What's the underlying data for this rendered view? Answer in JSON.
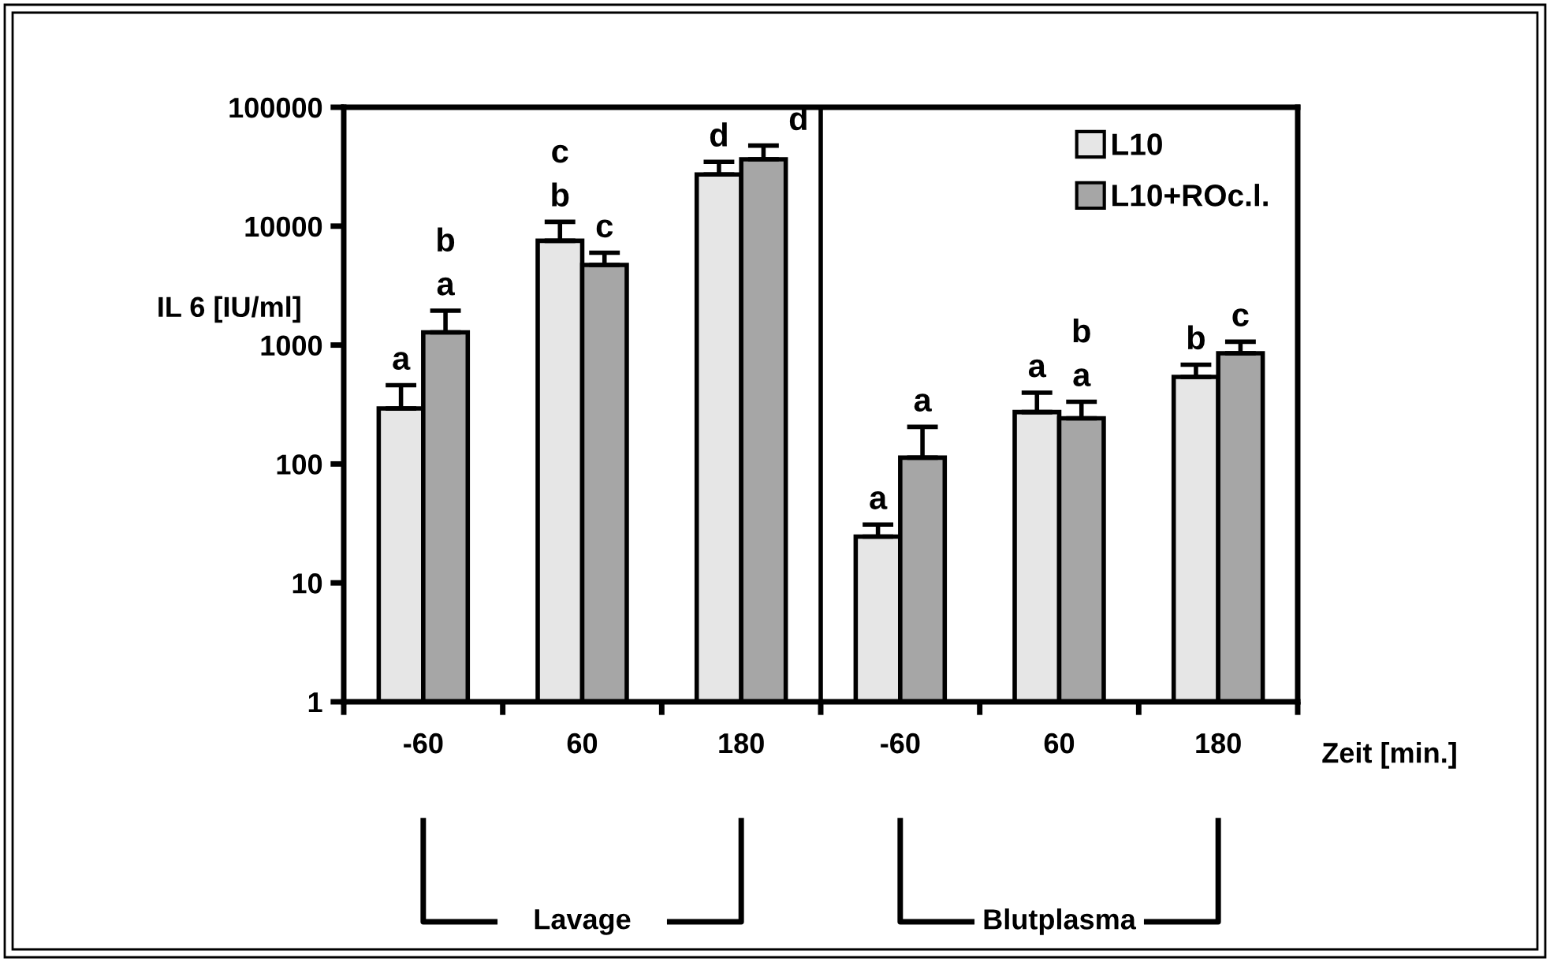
{
  "chart_data": {
    "type": "bar",
    "ylabel": "IL 6 [IU/ml]",
    "xlabel": "Zeit [min.]",
    "categories": [
      "-60",
      "60",
      "180",
      "-60",
      "60",
      "180"
    ],
    "series": [
      {
        "name": "L10",
        "color": "#e6e6e6",
        "values": [
          293,
          7530,
          27200,
          24.5,
          273,
          540
        ],
        "errors": [
          [
            293,
            460
          ],
          [
            7530,
            10860
          ],
          [
            27200,
            34700
          ],
          [
            24.5,
            30.9
          ],
          [
            273,
            398
          ],
          [
            540,
            683
          ]
        ]
      },
      {
        "name": "L10+ROc.l.",
        "color": "#a6a6a6",
        "values": [
          1280,
          4720,
          36500,
          113,
          242,
          853
        ],
        "errors": [
          [
            1280,
            1945
          ],
          [
            4720,
            5970
          ],
          [
            36500,
            47600
          ],
          [
            113,
            205
          ],
          [
            242,
            334
          ],
          [
            853,
            1067
          ]
        ]
      }
    ],
    "log": "y",
    "ylim": [
      1,
      100000
    ],
    "yticks": [
      1,
      10,
      100,
      1000,
      10000,
      100000
    ],
    "grid": false,
    "legend": "top right",
    "annotations": [
      "a",
      "a",
      "b",
      "b",
      "c",
      "c",
      "d",
      "d",
      "a",
      "a",
      "a",
      "a",
      "b",
      "b",
      "c",
      "Lavage",
      "Blutplasma"
    ]
  }
}
